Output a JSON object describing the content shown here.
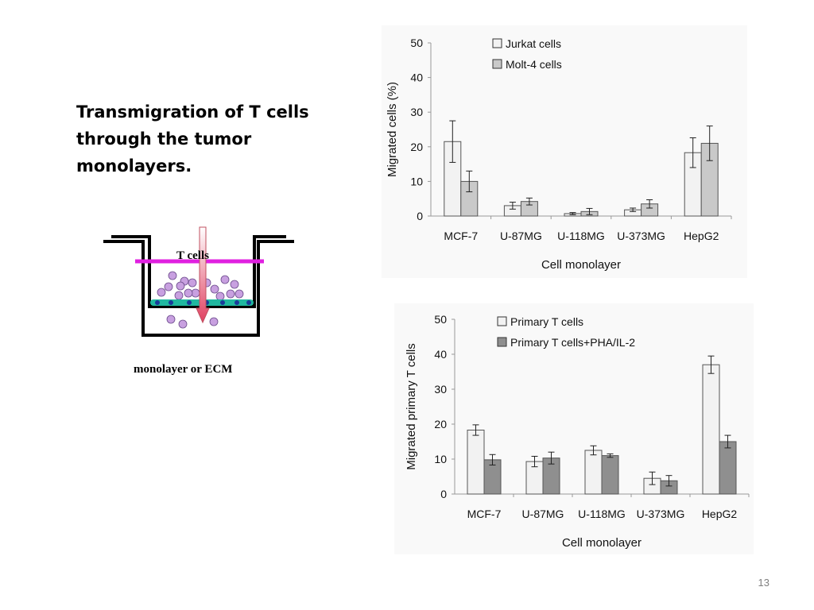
{
  "slide": {
    "title": "Transmigration of T cells through the tumor monolayers.",
    "page_number": "13"
  },
  "diagram": {
    "top_label": "T cells",
    "bottom_label": "monolayer or ECM",
    "colors": {
      "insert_line": "#e020e0",
      "cells": "#c8a0e0",
      "monolayer": "#20b8a0",
      "nuclei": "#1a3a9a",
      "probe": "#e04060"
    }
  },
  "chart_data": [
    {
      "type": "bar",
      "title": "",
      "xlabel": "Cell monolayer",
      "ylabel": "Migrated cells (%)",
      "ylim": [
        0,
        50
      ],
      "yticks": [
        0,
        10,
        20,
        30,
        40,
        50
      ],
      "categories": [
        "MCF-7",
        "U-87MG",
        "U-118MG",
        "U-373MG",
        "HepG2"
      ],
      "legend_position": "top-left",
      "series": [
        {
          "name": "Jurkat cells",
          "color": "#f2f2f2",
          "values": [
            21.5,
            3.0,
            0.7,
            1.8,
            18.3
          ],
          "errors": [
            6.0,
            1.0,
            0.3,
            0.5,
            4.3
          ]
        },
        {
          "name": "Molt-4 cells",
          "color": "#c9c9c9",
          "values": [
            10.0,
            4.2,
            1.3,
            3.5,
            21.0
          ],
          "errors": [
            3.0,
            1.0,
            0.9,
            1.2,
            5.0
          ]
        }
      ]
    },
    {
      "type": "bar",
      "title": "",
      "xlabel": "Cell monolayer",
      "ylabel": "Migrated primary T cells",
      "ylim": [
        0,
        50
      ],
      "yticks": [
        0,
        10,
        20,
        30,
        40,
        50
      ],
      "categories": [
        "MCF-7",
        "U-87MG",
        "U-118MG",
        "U-373MG",
        "HepG2"
      ],
      "legend_position": "top-left",
      "series": [
        {
          "name": "Primary T cells",
          "color": "#f2f2f2",
          "values": [
            18.3,
            9.3,
            12.5,
            4.5,
            37.0
          ],
          "errors": [
            1.5,
            1.5,
            1.3,
            1.8,
            2.5
          ]
        },
        {
          "name": "Primary T cells+PHA/IL-2",
          "color": "#8f8f8f",
          "values": [
            9.8,
            10.3,
            11.0,
            3.8,
            15.0
          ],
          "errors": [
            1.5,
            1.7,
            0.5,
            1.5,
            1.8
          ]
        }
      ]
    }
  ]
}
